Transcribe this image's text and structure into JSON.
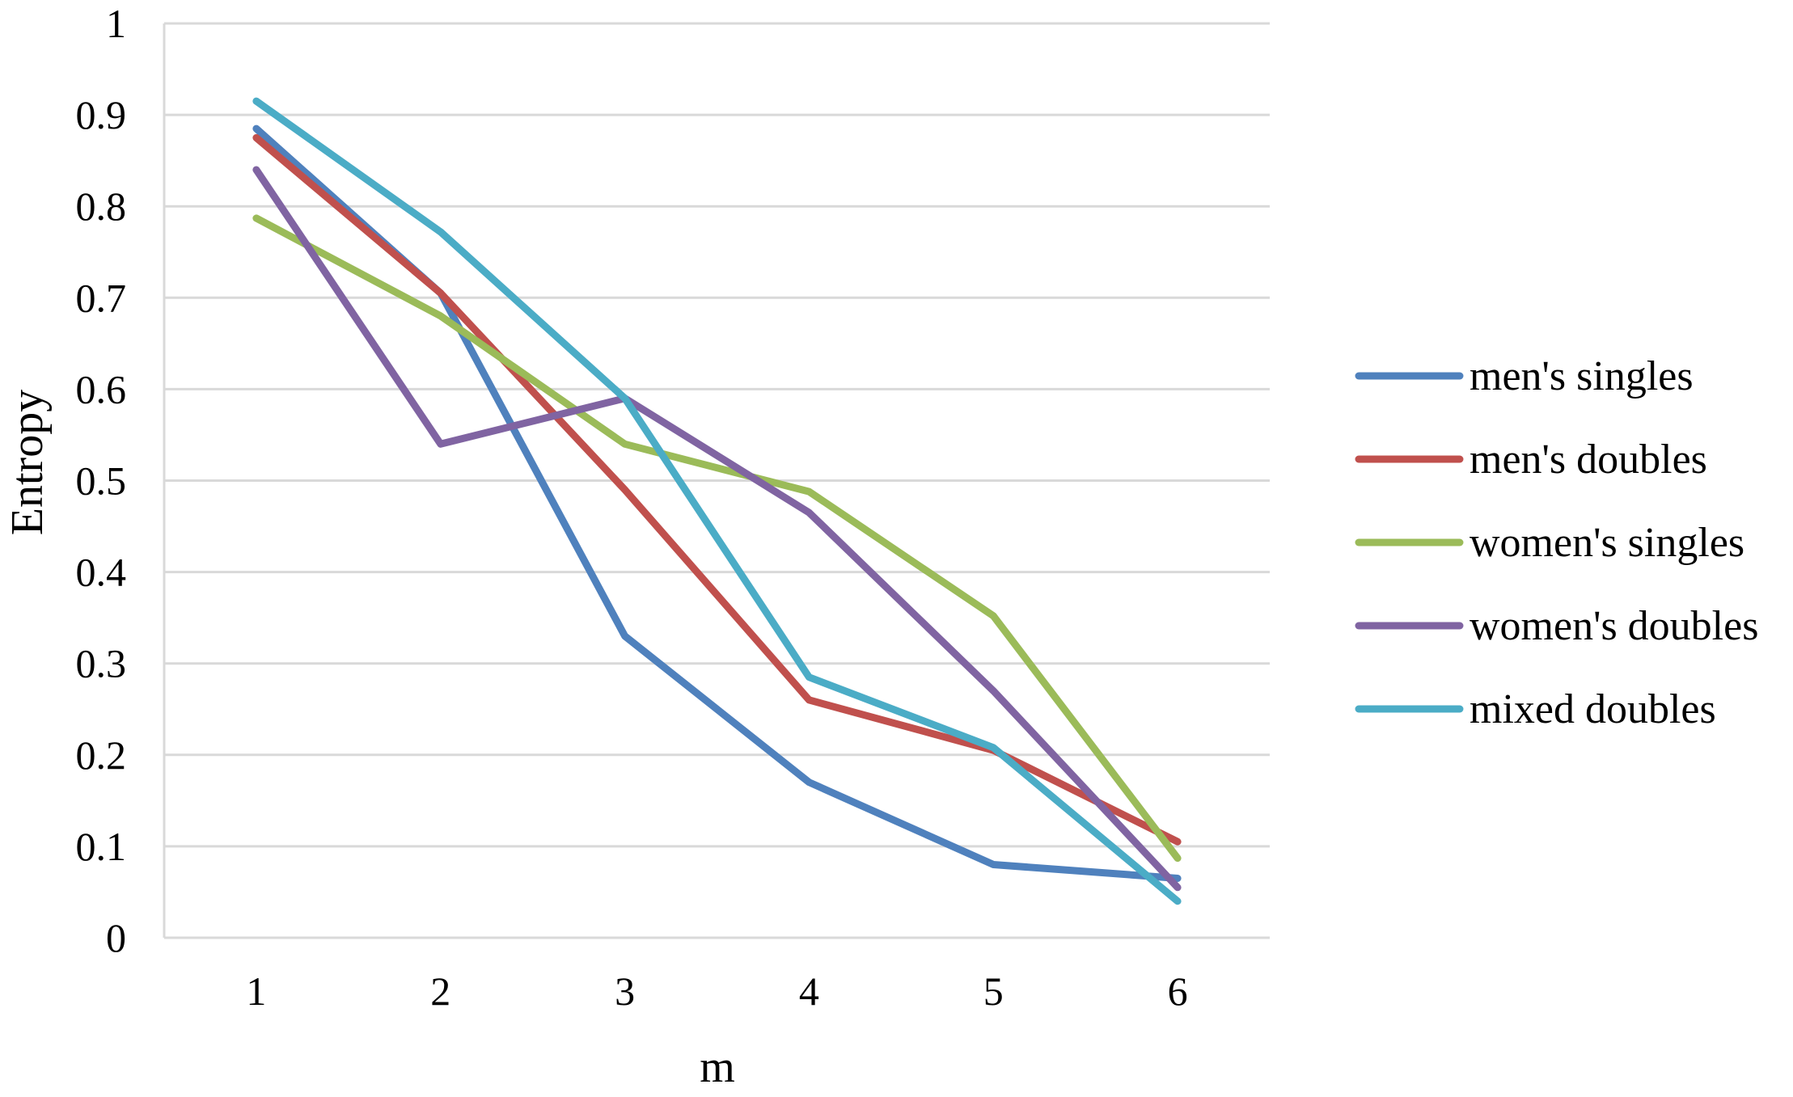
{
  "chart_data": {
    "type": "line",
    "title": "",
    "xlabel": "m",
    "ylabel": "Entropy",
    "x": [
      1,
      2,
      3,
      4,
      5,
      6
    ],
    "x_tick_labels": [
      "1",
      "2",
      "3",
      "4",
      "5",
      "6"
    ],
    "y_tick_labels": [
      "0",
      "0.1",
      "0.2",
      "0.3",
      "0.4",
      "0.5",
      "0.6",
      "0.7",
      "0.8",
      "0.9",
      "1"
    ],
    "ylim": [
      0,
      1
    ],
    "grid": "horizontal",
    "legend_position": "right",
    "series": [
      {
        "name": "men's singles",
        "color": "#4F81BD",
        "values": [
          0.885,
          0.705,
          0.33,
          0.17,
          0.08,
          0.065
        ]
      },
      {
        "name": "men's doubles",
        "color": "#C0504D",
        "values": [
          0.875,
          0.705,
          0.49,
          0.26,
          0.205,
          0.105
        ]
      },
      {
        "name": "women's singles",
        "color": "#9BBB59",
        "values": [
          0.787,
          0.68,
          0.54,
          0.488,
          0.352,
          0.087
        ]
      },
      {
        "name": "women's doubles",
        "color": "#8064A2",
        "values": [
          0.84,
          0.54,
          0.59,
          0.465,
          0.27,
          0.055
        ]
      },
      {
        "name": "mixed doubles",
        "color": "#4BACC6",
        "values": [
          0.915,
          0.772,
          0.59,
          0.285,
          0.208,
          0.04
        ]
      }
    ]
  }
}
